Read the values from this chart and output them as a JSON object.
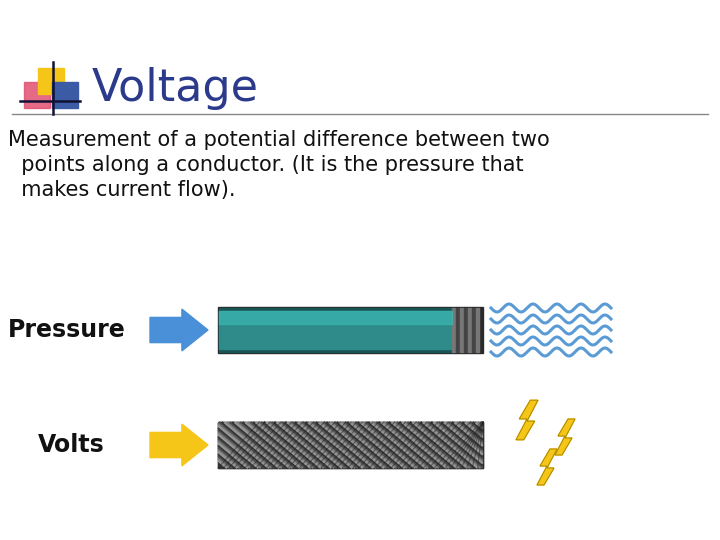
{
  "title": "Voltage",
  "title_color": "#2B3A8B",
  "title_fontsize": 32,
  "bg_color": "#FFFFFF",
  "body_line1": "Measurement of a potential difference between two",
  "body_line2": "  points along a conductor. (It is the pressure that",
  "body_line3": "  makes current flow).",
  "body_fontsize": 15,
  "pressure_label": "Pressure",
  "volts_label": "Volts",
  "label_fontsize": 17,
  "pipe_color_main": "#2E8B8A",
  "pipe_color_dark": "#1A5E5E",
  "pipe_end_color": "#444444",
  "wire_color_base": "#3A3A3A",
  "arrow_blue": "#4A90D9",
  "arrow_yellow": "#F5C518",
  "water_color": "#5B9BD5",
  "lightning_color": "#F5C518",
  "logo_yellow": "#F5C518",
  "logo_red": "#E05070",
  "logo_blue": "#3B5BA5",
  "line_color": "#888888",
  "sq_size": 26
}
